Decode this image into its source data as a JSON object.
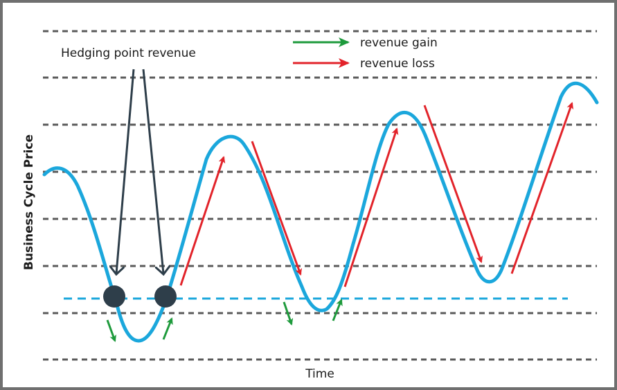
{
  "diagram": {
    "callout_label": "Hedging point revenue",
    "legend": [
      {
        "label": "revenue gain",
        "color": "#1e9a3c"
      },
      {
        "label": "revenue loss",
        "color": "#e2232a"
      }
    ],
    "y_axis_label": "Business Cycle Price",
    "x_axis_label": "Time",
    "colors": {
      "curve": "#1ba7dc",
      "hedge_line": "#1ba7dc",
      "grid": "#5a5a5a",
      "marker": "#2e3e4a",
      "callout_arrow": "#2e3e4a",
      "frame": "#6f6f6f"
    }
  }
}
